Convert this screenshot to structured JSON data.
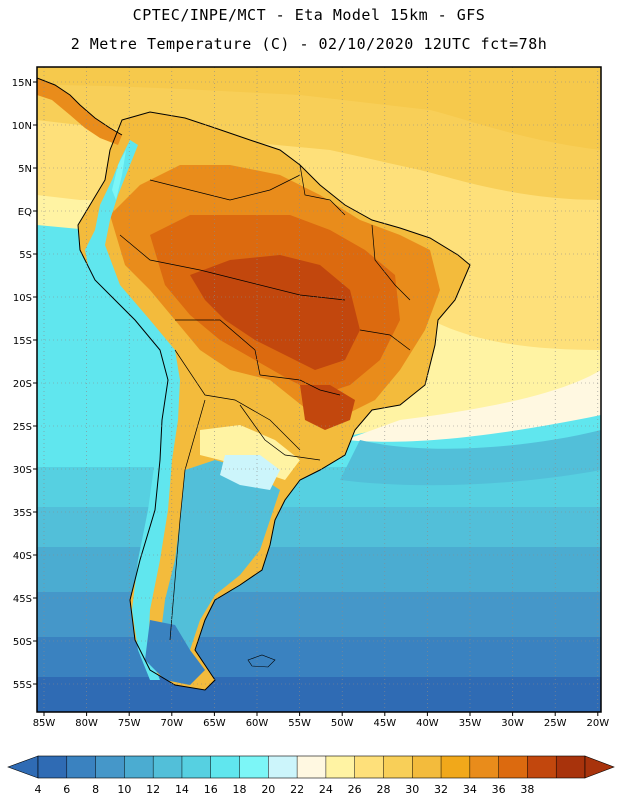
{
  "header": {
    "line1": "CPTEC/INPE/MCT -  Eta Model 15km - GFS",
    "line2": "2 Metre Temperature (C) - 02/10/2020 12UTC fct=78h"
  },
  "map": {
    "lat_labels": [
      "15N",
      "10N",
      "5N",
      "EQ",
      "5S",
      "10S",
      "15S",
      "20S",
      "25S",
      "30S",
      "35S",
      "40S",
      "45S",
      "50S",
      "55S"
    ],
    "lon_labels": [
      "85W",
      "80W",
      "75W",
      "70W",
      "65W",
      "60W",
      "55W",
      "50W",
      "45W",
      "40W",
      "35W",
      "30W",
      "25W",
      "20W"
    ]
  },
  "colorbar": {
    "labels": [
      "4",
      "6",
      "8",
      "10",
      "12",
      "14",
      "16",
      "18",
      "20",
      "22",
      "24",
      "26",
      "28",
      "30",
      "32",
      "34",
      "36",
      "38"
    ],
    "colors": [
      "#2f6bb4",
      "#3a82c0",
      "#4597c9",
      "#4bacd1",
      "#52bfd9",
      "#56d0e1",
      "#60e6ee",
      "#7cf6f7",
      "#ccf5fb",
      "#fff8e1",
      "#fff3a3",
      "#fee07a",
      "#f8cf58",
      "#f3bb3c",
      "#f1a81a",
      "#e98c1b",
      "#dc6a0f",
      "#c2470d",
      "#a8330c",
      "#2f6bb4"
    ]
  }
}
